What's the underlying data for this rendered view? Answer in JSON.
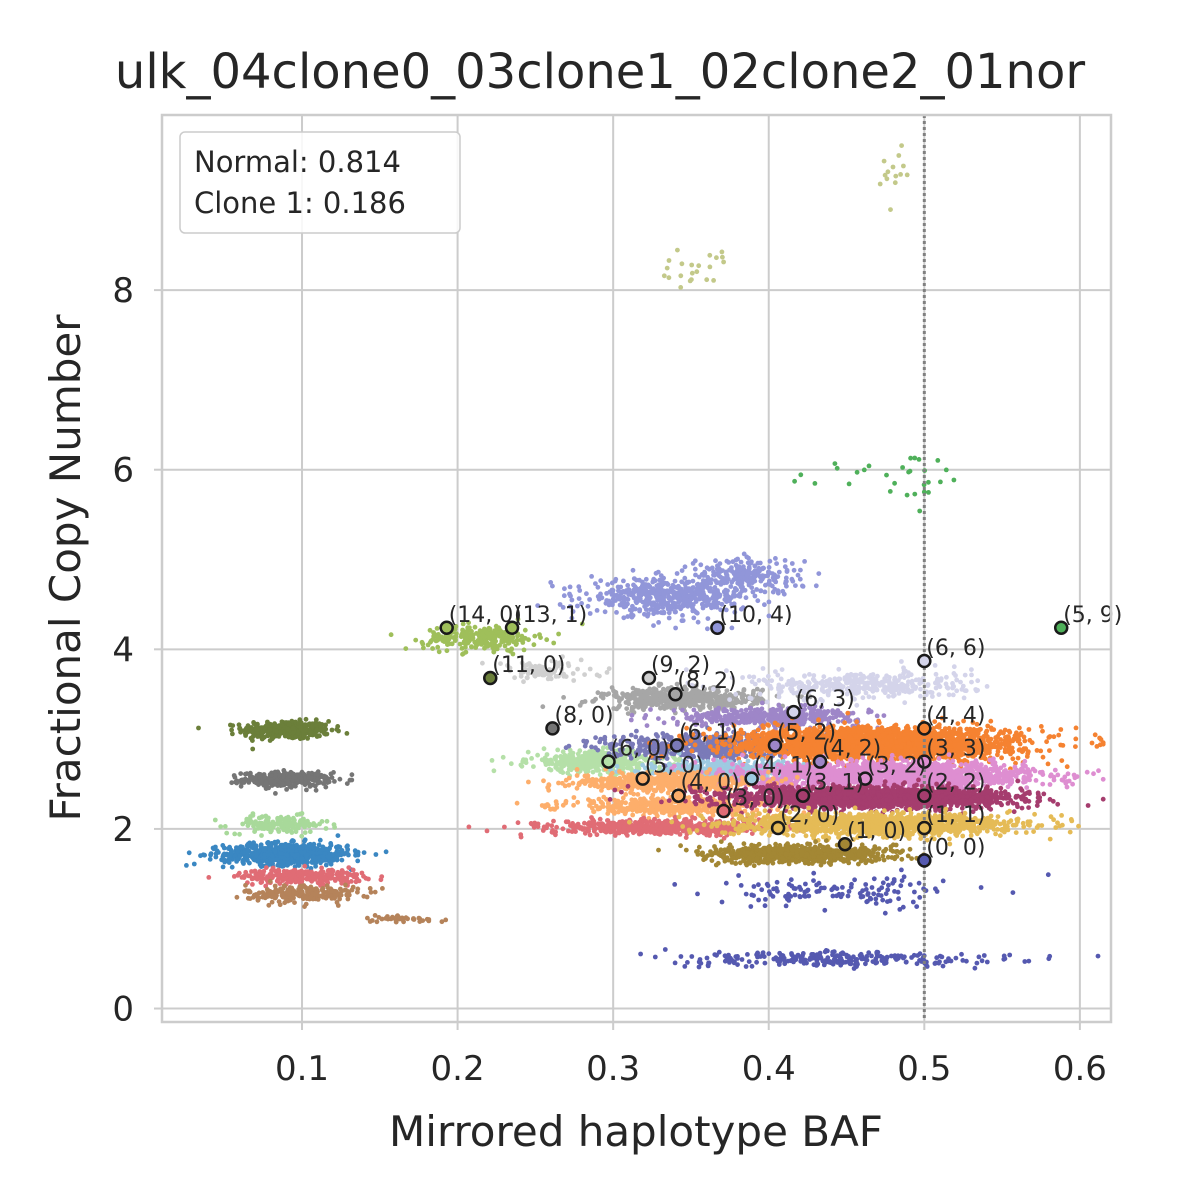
{
  "chart_data": {
    "type": "scatter",
    "title": "ulk_04clone0_03clone1_02clone2_01nor",
    "xlabel": "Mirrored haplotype BAF",
    "ylabel": "Fractional Copy Number",
    "xlim": [
      0.01,
      0.62
    ],
    "ylim": [
      -0.15,
      9.95
    ],
    "x_ticks": [
      0.1,
      0.2,
      0.3,
      0.4,
      0.5,
      0.6
    ],
    "x_tick_labels": [
      "0.1",
      "0.2",
      "0.3",
      "0.4",
      "0.5",
      "0.6"
    ],
    "y_ticks": [
      0,
      2,
      4,
      6,
      8
    ],
    "y_tick_labels": [
      "0",
      "2",
      "4",
      "6",
      "8"
    ],
    "grid": true,
    "reference_line": {
      "x": 0.5,
      "style": "dotted",
      "color": "#808080"
    },
    "legend": {
      "placement": "top-left",
      "entries": [
        "Normal: 0.814",
        "Clone 1: 0.186"
      ]
    },
    "clusters": [
      {
        "color": "#6b7f3a",
        "x": 0.09,
        "y": 3.1,
        "sx": 0.014,
        "sy": 0.05,
        "n": 380
      },
      {
        "color": "#757575",
        "x": 0.09,
        "y": 2.55,
        "sx": 0.014,
        "sy": 0.04,
        "n": 320
      },
      {
        "color": "#a8d99a",
        "x": 0.085,
        "y": 2.05,
        "sx": 0.016,
        "sy": 0.05,
        "n": 150
      },
      {
        "color": "#3a87c2",
        "x": 0.09,
        "y": 1.72,
        "sx": 0.02,
        "sy": 0.06,
        "n": 700
      },
      {
        "color": "#e06c75",
        "x": 0.1,
        "y": 1.47,
        "sx": 0.02,
        "sy": 0.04,
        "n": 260
      },
      {
        "color": "#b5835a",
        "x": 0.1,
        "y": 1.28,
        "sx": 0.018,
        "sy": 0.05,
        "n": 220
      },
      {
        "color": "#b5835a",
        "x": 0.165,
        "y": 1.0,
        "sx": 0.014,
        "sy": 0.02,
        "n": 40
      },
      {
        "color": "#9fbf5a",
        "x": 0.215,
        "y": 4.13,
        "sx": 0.018,
        "sy": 0.07,
        "n": 260
      },
      {
        "color": "#d0d0d0",
        "x": 0.255,
        "y": 3.75,
        "sx": 0.018,
        "sy": 0.06,
        "n": 90
      },
      {
        "color": "#b5e0a8",
        "x": 0.29,
        "y": 2.75,
        "sx": 0.022,
        "sy": 0.06,
        "n": 450
      },
      {
        "color": "#9196d9",
        "x": 0.335,
        "y": 4.58,
        "sx": 0.025,
        "sy": 0.1,
        "n": 520
      },
      {
        "color": "#9196d9",
        "x": 0.385,
        "y": 4.82,
        "sx": 0.018,
        "sy": 0.1,
        "n": 220
      },
      {
        "color": "#a6a6a6",
        "x": 0.345,
        "y": 3.45,
        "sx": 0.025,
        "sy": 0.06,
        "n": 520
      },
      {
        "color": "#9e86c8",
        "x": 0.4,
        "y": 3.25,
        "sx": 0.03,
        "sy": 0.05,
        "n": 420
      },
      {
        "color": "#d4d4ea",
        "x": 0.46,
        "y": 3.6,
        "sx": 0.035,
        "sy": 0.08,
        "n": 380
      },
      {
        "color": "#7a7ab8",
        "x": 0.355,
        "y": 2.92,
        "sx": 0.03,
        "sy": 0.07,
        "n": 520
      },
      {
        "color": "#f58231",
        "x": 0.47,
        "y": 2.95,
        "sx": 0.045,
        "sy": 0.09,
        "n": 2400
      },
      {
        "color": "#9ecae1",
        "x": 0.375,
        "y": 2.65,
        "sx": 0.028,
        "sy": 0.05,
        "n": 450
      },
      {
        "color": "#de8ed1",
        "x": 0.48,
        "y": 2.6,
        "sx": 0.045,
        "sy": 0.07,
        "n": 1600
      },
      {
        "color": "#fdae6b",
        "x": 0.335,
        "y": 2.52,
        "sx": 0.03,
        "sy": 0.05,
        "n": 520
      },
      {
        "color": "#fdae6b",
        "x": 0.34,
        "y": 2.25,
        "sx": 0.035,
        "sy": 0.05,
        "n": 420
      },
      {
        "color": "#e06c75",
        "x": 0.33,
        "y": 2.02,
        "sx": 0.035,
        "sy": 0.04,
        "n": 620
      },
      {
        "color": "#a53d6e",
        "x": 0.465,
        "y": 2.35,
        "sx": 0.045,
        "sy": 0.06,
        "n": 2000
      },
      {
        "color": "#e5bb56",
        "x": 0.47,
        "y": 2.05,
        "sx": 0.045,
        "sy": 0.06,
        "n": 1300
      },
      {
        "color": "#a38734",
        "x": 0.42,
        "y": 1.72,
        "sx": 0.03,
        "sy": 0.05,
        "n": 720
      },
      {
        "color": "#5559b0",
        "x": 0.445,
        "y": 1.3,
        "sx": 0.04,
        "sy": 0.08,
        "n": 130
      },
      {
        "color": "#5559b0",
        "x": 0.44,
        "y": 0.55,
        "sx": 0.05,
        "sy": 0.04,
        "n": 260
      },
      {
        "color": "#4fb05a",
        "x": 0.48,
        "y": 5.9,
        "sx": 0.025,
        "sy": 0.2,
        "n": 30
      },
      {
        "color": "#c3c98a",
        "x": 0.35,
        "y": 8.25,
        "sx": 0.013,
        "sy": 0.12,
        "n": 22
      },
      {
        "color": "#c3c98a",
        "x": 0.478,
        "y": 9.3,
        "sx": 0.006,
        "sy": 0.14,
        "n": 14
      }
    ],
    "centers": [
      {
        "label": "(14, 0)",
        "x": 0.193,
        "y": 4.24,
        "color": "#9fbf5a"
      },
      {
        "label": "(13, 1)",
        "x": 0.235,
        "y": 4.24,
        "color": "#9fbf5a"
      },
      {
        "label": "(11, 0)",
        "x": 0.221,
        "y": 3.68,
        "color": "#6b7f3a"
      },
      {
        "label": "(8, 0)",
        "x": 0.261,
        "y": 3.12,
        "color": "#757575"
      },
      {
        "label": "(10, 4)",
        "x": 0.367,
        "y": 4.24,
        "color": "#9196d9"
      },
      {
        "label": "(9, 2)",
        "x": 0.323,
        "y": 3.68,
        "color": "#d0d0d0"
      },
      {
        "label": "(8, 2)",
        "x": 0.34,
        "y": 3.5,
        "color": "#a6a6a6"
      },
      {
        "label": "(6, 3)",
        "x": 0.416,
        "y": 3.3,
        "color": "#d4d4ea"
      },
      {
        "label": "(6, 6)",
        "x": 0.5,
        "y": 3.87,
        "color": "#d4d4ea"
      },
      {
        "label": "(5, 9)",
        "x": 0.588,
        "y": 4.24,
        "color": "#4fb05a"
      },
      {
        "label": "(6, 1)",
        "x": 0.341,
        "y": 2.93,
        "color": "#7a7ab8"
      },
      {
        "label": "(5, 2)",
        "x": 0.404,
        "y": 2.93,
        "color": "#9e86c8"
      },
      {
        "label": "(4, 4)",
        "x": 0.5,
        "y": 3.12,
        "color": "#f58231"
      },
      {
        "label": "(6, 0)",
        "x": 0.297,
        "y": 2.75,
        "color": "#b5e0a8"
      },
      {
        "label": "(5, 0)",
        "x": 0.319,
        "y": 2.56,
        "color": "#fdae6b"
      },
      {
        "label": "(4, 1)",
        "x": 0.389,
        "y": 2.56,
        "color": "#9ecae1"
      },
      {
        "label": "(4, 2)",
        "x": 0.433,
        "y": 2.75,
        "color": "#9e86c8"
      },
      {
        "label": "(3, 3)",
        "x": 0.5,
        "y": 2.75,
        "color": "#de8ed1"
      },
      {
        "label": "(3, 2)",
        "x": 0.462,
        "y": 2.56,
        "color": "#de8ed1"
      },
      {
        "label": "(4, 0)",
        "x": 0.342,
        "y": 2.37,
        "color": "#fdae6b"
      },
      {
        "label": "(3, 1)",
        "x": 0.422,
        "y": 2.37,
        "color": "#a53d6e"
      },
      {
        "label": "(2, 2)",
        "x": 0.5,
        "y": 2.37,
        "color": "#a53d6e"
      },
      {
        "label": "(3, 0)",
        "x": 0.371,
        "y": 2.2,
        "color": "#e06c75"
      },
      {
        "label": "(2, 0)",
        "x": 0.406,
        "y": 2.01,
        "color": "#e5bb56"
      },
      {
        "label": "(1, 1)",
        "x": 0.5,
        "y": 2.01,
        "color": "#e5bb56"
      },
      {
        "label": "(1, 0)",
        "x": 0.449,
        "y": 1.83,
        "color": "#a38734"
      },
      {
        "label": "(0, 0)",
        "x": 0.5,
        "y": 1.65,
        "color": "#5559b0"
      }
    ]
  }
}
